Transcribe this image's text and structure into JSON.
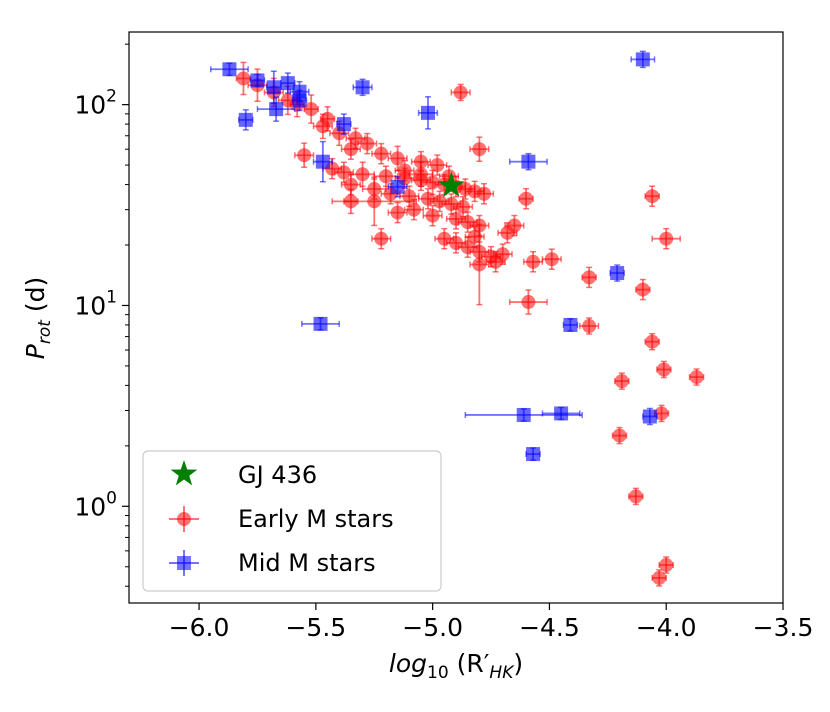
{
  "chart_data": {
    "type": "scatter",
    "title": "",
    "xlabel": "log10 (R′HK)",
    "xlabel_parts": {
      "base": "log",
      "sub": "10",
      "open": " (R′",
      "sub2": "HK",
      "close": ")"
    },
    "ylabel": "Prot (d)",
    "ylabel_parts": {
      "base": "P",
      "sub": "rot",
      "rest": " (d)"
    },
    "xlim": [
      -6.3,
      -3.5
    ],
    "ylim": [
      0.33,
      230
    ],
    "yscale": "log",
    "x_ticks": [
      -6.0,
      -5.5,
      -5.0,
      -4.5,
      -4.0,
      -3.5
    ],
    "x_tick_labels": [
      "−6.0",
      "−5.5",
      "−5.0",
      "−4.5",
      "−4.0",
      "−3.5"
    ],
    "y_ticks": [
      1,
      10,
      100
    ],
    "y_tick_labels": [
      {
        "base": "10",
        "exp": "0"
      },
      {
        "base": "10",
        "exp": "1"
      },
      {
        "base": "10",
        "exp": "2"
      }
    ],
    "legend_position": "lower-left",
    "colors": {
      "early": "#ff0000",
      "mid": "#0000ff",
      "gj436": "#008000"
    },
    "series": [
      {
        "name": "Early M stars",
        "marker": "circle",
        "points": [
          [
            -5.81,
            135,
            0.03,
            0.08
          ],
          [
            -5.75,
            125,
            0.04,
            0.08
          ],
          [
            -5.68,
            115,
            0.04,
            0.07
          ],
          [
            -5.62,
            105,
            0.04,
            0.07
          ],
          [
            -5.58,
            100,
            0.03,
            0.06
          ],
          [
            -5.52,
            95,
            0.03,
            0.07
          ],
          [
            -5.45,
            85,
            0.03,
            0.06
          ],
          [
            -5.47,
            78,
            0.04,
            0.06
          ],
          [
            -5.4,
            72,
            0.04,
            0.06
          ],
          [
            -5.33,
            68,
            0.04,
            0.05
          ],
          [
            -5.28,
            64,
            0.04,
            0.05
          ],
          [
            -5.35,
            60,
            0.04,
            0.05
          ],
          [
            -5.22,
            57,
            0.04,
            0.05
          ],
          [
            -5.55,
            56,
            0.04,
            0.06
          ],
          [
            -5.15,
            54,
            0.04,
            0.06
          ],
          [
            -5.05,
            52,
            0.04,
            0.05
          ],
          [
            -4.98,
            50,
            0.04,
            0.05
          ],
          [
            -5.43,
            48,
            0.04,
            0.05
          ],
          [
            -5.38,
            46,
            0.04,
            0.05
          ],
          [
            -5.3,
            45,
            0.05,
            0.06
          ],
          [
            -5.2,
            44,
            0.05,
            0.05
          ],
          [
            -5.12,
            43,
            0.04,
            0.05
          ],
          [
            -5.05,
            42,
            0.04,
            0.05
          ],
          [
            -5.0,
            41,
            0.05,
            0.06
          ],
          [
            -4.95,
            40,
            0.04,
            0.05
          ],
          [
            -4.9,
            39,
            0.04,
            0.05
          ],
          [
            -4.86,
            38,
            0.04,
            0.05
          ],
          [
            -4.82,
            37,
            0.04,
            0.05
          ],
          [
            -4.78,
            36,
            0.04,
            0.05
          ],
          [
            -5.35,
            40,
            0.04,
            0.05
          ],
          [
            -5.25,
            38,
            0.05,
            0.05
          ],
          [
            -5.18,
            36,
            0.04,
            0.05
          ],
          [
            -5.1,
            35,
            0.04,
            0.05
          ],
          [
            -5.02,
            34,
            0.04,
            0.05
          ],
          [
            -4.97,
            33,
            0.04,
            0.05
          ],
          [
            -4.92,
            32,
            0.04,
            0.05
          ],
          [
            -4.87,
            31,
            0.04,
            0.05
          ],
          [
            -5.08,
            30,
            0.04,
            0.05
          ],
          [
            -5.15,
            29,
            0.04,
            0.05
          ],
          [
            -5.0,
            28,
            0.04,
            0.05
          ],
          [
            -4.9,
            27,
            0.04,
            0.05
          ],
          [
            -4.85,
            26,
            0.04,
            0.05
          ],
          [
            -4.8,
            25,
            0.04,
            0.05
          ],
          [
            -5.25,
            33,
            0.18,
            0.12
          ],
          [
            -5.35,
            33,
            0.03,
            0.06
          ],
          [
            -5.22,
            21.5,
            0.04,
            0.05
          ],
          [
            -4.95,
            21.5,
            0.04,
            0.05
          ],
          [
            -4.9,
            20.5,
            0.04,
            0.05
          ],
          [
            -4.85,
            19.5,
            0.04,
            0.05
          ],
          [
            -4.82,
            22,
            0.04,
            0.05
          ],
          [
            -4.8,
            18.5,
            0.04,
            0.05
          ],
          [
            -4.75,
            17.5,
            0.04,
            0.05
          ],
          [
            -4.7,
            18,
            0.04,
            0.05
          ],
          [
            -4.65,
            25,
            0.04,
            0.05
          ],
          [
            -4.68,
            23,
            0.04,
            0.05
          ],
          [
            -4.73,
            16.5,
            0.04,
            0.05
          ],
          [
            -4.8,
            16,
            0.04,
            0.2
          ],
          [
            -4.57,
            16.5,
            0.04,
            0.05
          ],
          [
            -4.49,
            17,
            0.04,
            0.05
          ],
          [
            -4.6,
            34,
            0.03,
            0.05
          ],
          [
            -4.8,
            60,
            0.04,
            0.06
          ],
          [
            -4.88,
            115,
            0.04,
            0.04
          ],
          [
            -4.59,
            10.4,
            0.08,
            0.06
          ],
          [
            -4.33,
            13.8,
            0.03,
            0.05
          ],
          [
            -4.33,
            7.9,
            0.04,
            0.04
          ],
          [
            -4.06,
            35,
            0.03,
            0.05
          ],
          [
            -4.0,
            21.5,
            0.06,
            0.05
          ],
          [
            -4.1,
            12,
            0.03,
            0.05
          ],
          [
            -4.06,
            6.6,
            0.03,
            0.04
          ],
          [
            -4.01,
            4.8,
            0.03,
            0.04
          ],
          [
            -3.87,
            4.4,
            0.03,
            0.04
          ],
          [
            -4.19,
            4.2,
            0.03,
            0.04
          ],
          [
            -4.02,
            2.9,
            0.03,
            0.04
          ],
          [
            -4.2,
            2.25,
            0.03,
            0.04
          ],
          [
            -4.13,
            1.12,
            0.03,
            0.04
          ],
          [
            -4.0,
            0.51,
            0.03,
            0.04
          ],
          [
            -4.03,
            0.44,
            0.03,
            0.04
          ],
          [
            -5.05,
            45,
            0.05,
            0.06
          ],
          [
            -4.93,
            44,
            0.04,
            0.05
          ],
          [
            -5.12,
            47,
            0.04,
            0.05
          ]
        ]
      },
      {
        "name": "Mid M stars",
        "marker": "square",
        "points": [
          [
            -5.87,
            150,
            0.08,
            0.03
          ],
          [
            -5.75,
            132,
            0.03,
            0.03
          ],
          [
            -5.68,
            122,
            0.03,
            0.08
          ],
          [
            -5.62,
            128,
            0.03,
            0.05
          ],
          [
            -5.57,
            116,
            0.04,
            0.05
          ],
          [
            -5.3,
            122,
            0.04,
            0.04
          ],
          [
            -5.67,
            95,
            0.08,
            0.06
          ],
          [
            -5.57,
            105,
            0.03,
            0.05
          ],
          [
            -5.38,
            80,
            0.03,
            0.05
          ],
          [
            -5.8,
            84,
            0.03,
            0.05
          ],
          [
            -5.02,
            91,
            0.04,
            0.08
          ],
          [
            -5.47,
            52,
            0.04,
            0.1
          ],
          [
            -5.15,
            39,
            0.04,
            0.05
          ],
          [
            -4.59,
            52,
            0.08,
            0.04
          ],
          [
            -4.1,
            168,
            0.05,
            0.04
          ],
          [
            -4.21,
            14.5,
            0.03,
            0.04
          ],
          [
            -5.48,
            8.1,
            0.08,
            0.03
          ],
          [
            -4.41,
            8.0,
            0.03,
            0.03
          ],
          [
            -4.61,
            2.85,
            0.25,
            0.03
          ],
          [
            -4.45,
            2.9,
            0.08,
            0.03
          ],
          [
            -4.07,
            2.8,
            0.03,
            0.04
          ],
          [
            -4.57,
            1.82,
            0.03,
            0.03
          ]
        ]
      },
      {
        "name": "GJ 436",
        "marker": "star",
        "points": [
          [
            -4.92,
            39.5,
            0,
            0
          ]
        ]
      }
    ]
  }
}
